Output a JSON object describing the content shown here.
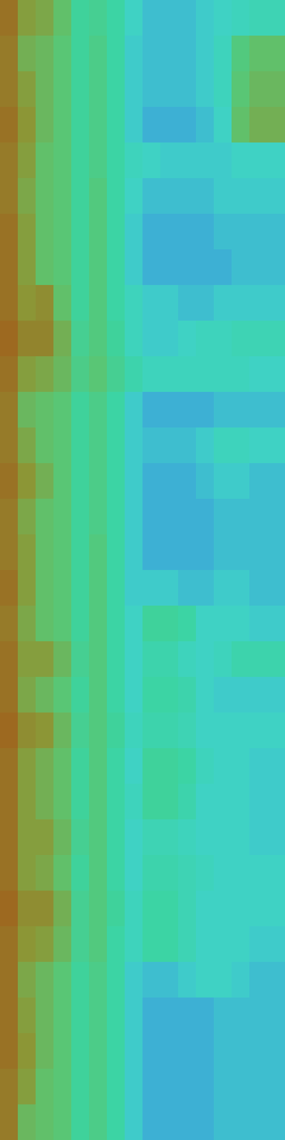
{
  "chart_data": {
    "type": "heatmap",
    "tick_labels": false,
    "zlim": [
      0,
      100
    ],
    "cells": [
      [
        84,
        74,
        72,
        66,
        56,
        58,
        54,
        46,
        42,
        42,
        42,
        44,
        46,
        48,
        50,
        50
      ],
      [
        82,
        70,
        68,
        64,
        56,
        60,
        54,
        44,
        42,
        42,
        42,
        44,
        48,
        62,
        66,
        66
      ],
      [
        82,
        74,
        68,
        64,
        56,
        60,
        54,
        44,
        42,
        42,
        42,
        44,
        48,
        64,
        68,
        68
      ],
      [
        84,
        76,
        68,
        64,
        56,
        60,
        54,
        44,
        40,
        40,
        40,
        42,
        46,
        66,
        70,
        70
      ],
      [
        82,
        74,
        66,
        64,
        56,
        60,
        54,
        48,
        46,
        44,
        44,
        44,
        44,
        46,
        46,
        46
      ],
      [
        82,
        72,
        66,
        64,
        56,
        62,
        54,
        46,
        42,
        42,
        42,
        42,
        44,
        44,
        44,
        44
      ],
      [
        84,
        74,
        66,
        64,
        56,
        62,
        54,
        44,
        40,
        40,
        40,
        40,
        42,
        42,
        42,
        42
      ],
      [
        84,
        74,
        66,
        64,
        56,
        62,
        54,
        44,
        40,
        40,
        40,
        40,
        40,
        42,
        42,
        42
      ],
      [
        84,
        76,
        78,
        66,
        56,
        62,
        54,
        48,
        44,
        44,
        42,
        42,
        44,
        44,
        44,
        44
      ],
      [
        86,
        80,
        80,
        70,
        58,
        62,
        56,
        48,
        44,
        44,
        46,
        48,
        48,
        50,
        50,
        50
      ],
      [
        84,
        74,
        72,
        68,
        60,
        64,
        58,
        52,
        48,
        48,
        48,
        48,
        48,
        48,
        46,
        46
      ],
      [
        82,
        68,
        66,
        64,
        56,
        60,
        54,
        44,
        40,
        40,
        40,
        40,
        42,
        42,
        42,
        42
      ],
      [
        82,
        72,
        66,
        64,
        56,
        60,
        54,
        44,
        42,
        42,
        42,
        44,
        48,
        48,
        46,
        46
      ],
      [
        84,
        76,
        70,
        64,
        56,
        60,
        54,
        44,
        40,
        40,
        40,
        42,
        44,
        44,
        42,
        42
      ],
      [
        82,
        72,
        66,
        64,
        56,
        60,
        54,
        44,
        40,
        40,
        40,
        40,
        42,
        42,
        42,
        42
      ],
      [
        82,
        74,
        66,
        64,
        56,
        62,
        54,
        44,
        40,
        40,
        40,
        40,
        42,
        42,
        42,
        42
      ],
      [
        84,
        74,
        66,
        64,
        56,
        62,
        54,
        44,
        44,
        44,
        42,
        42,
        44,
        44,
        42,
        42
      ],
      [
        82,
        72,
        66,
        64,
        56,
        62,
        54,
        46,
        56,
        56,
        54,
        46,
        46,
        46,
        44,
        44
      ],
      [
        84,
        74,
        74,
        68,
        58,
        62,
        54,
        46,
        52,
        52,
        48,
        46,
        48,
        52,
        52,
        52
      ],
      [
        84,
        72,
        68,
        64,
        56,
        62,
        54,
        46,
        54,
        54,
        52,
        46,
        44,
        44,
        44,
        44
      ],
      [
        86,
        78,
        76,
        68,
        58,
        62,
        56,
        48,
        52,
        52,
        50,
        46,
        46,
        46,
        46,
        46
      ],
      [
        84,
        74,
        70,
        66,
        56,
        62,
        54,
        46,
        56,
        56,
        54,
        48,
        46,
        46,
        44,
        44
      ],
      [
        84,
        74,
        70,
        66,
        56,
        62,
        54,
        48,
        56,
        56,
        52,
        46,
        46,
        46,
        44,
        44
      ],
      [
        84,
        74,
        74,
        68,
        58,
        62,
        54,
        46,
        50,
        50,
        48,
        46,
        46,
        46,
        44,
        44
      ],
      [
        84,
        74,
        72,
        66,
        56,
        62,
        54,
        46,
        52,
        52,
        50,
        48,
        46,
        46,
        46,
        46
      ],
      [
        86,
        78,
        78,
        70,
        58,
        62,
        56,
        48,
        54,
        54,
        50,
        46,
        46,
        46,
        46,
        46
      ],
      [
        84,
        76,
        74,
        68,
        58,
        62,
        54,
        48,
        54,
        54,
        50,
        46,
        46,
        46,
        44,
        44
      ],
      [
        84,
        72,
        68,
        64,
        56,
        60,
        54,
        44,
        42,
        42,
        44,
        46,
        46,
        44,
        42,
        42
      ],
      [
        84,
        74,
        68,
        64,
        56,
        60,
        54,
        44,
        40,
        40,
        40,
        40,
        42,
        42,
        42,
        42
      ],
      [
        84,
        76,
        68,
        64,
        56,
        60,
        54,
        44,
        40,
        40,
        40,
        40,
        42,
        42,
        42,
        42
      ],
      [
        82,
        74,
        66,
        64,
        56,
        60,
        54,
        44,
        40,
        40,
        40,
        40,
        42,
        42,
        42,
        42
      ],
      [
        82,
        68,
        66,
        64,
        56,
        60,
        54,
        44,
        40,
        40,
        40,
        40,
        42,
        42,
        42,
        42
      ]
    ]
  }
}
